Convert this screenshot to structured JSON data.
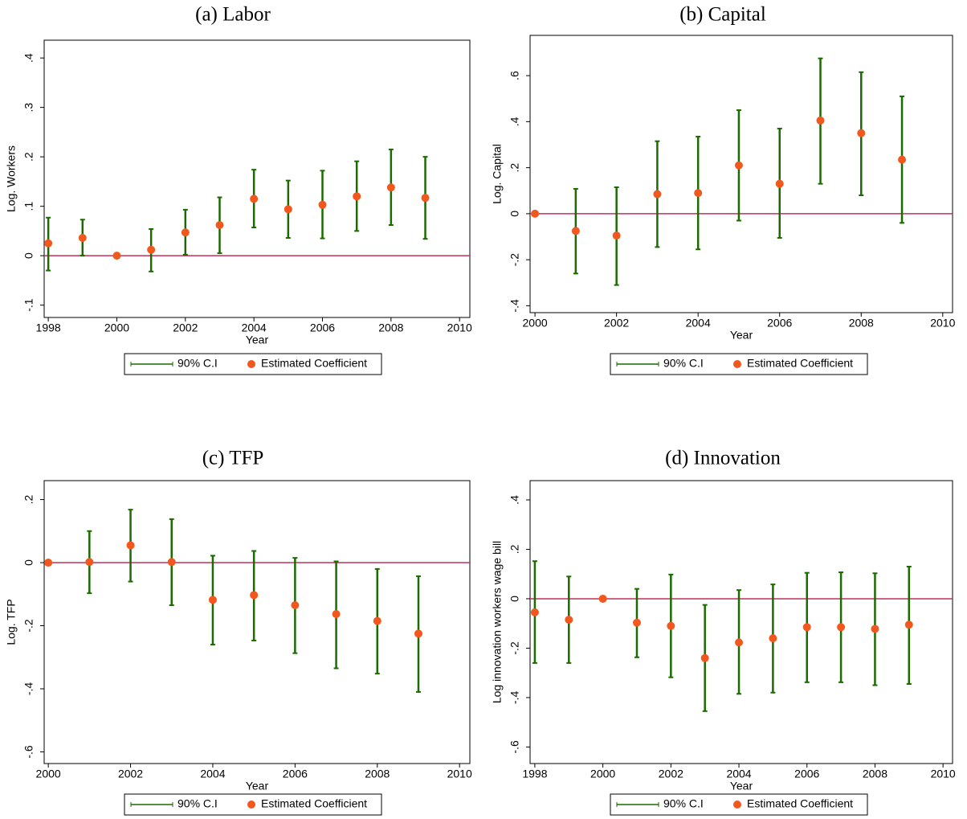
{
  "chart_data": [
    {
      "type": "errorbar",
      "title": "(a) Labor",
      "x_label": "Year",
      "y_label": "Log. Workers",
      "x": [
        1998,
        1999,
        2000,
        2001,
        2002,
        2003,
        2004,
        2005,
        2006,
        2007,
        2008,
        2009
      ],
      "series": [
        {
          "name": "90% C.I",
          "color": "#1a6b00",
          "lower": [
            -0.03,
            0,
            null,
            -0.032,
            0.002,
            0.005,
            0.057,
            0.036,
            0.035,
            0.05,
            0.062,
            0.034
          ],
          "upper": [
            0.077,
            0.073,
            null,
            0.054,
            0.093,
            0.118,
            0.174,
            0.152,
            0.172,
            0.191,
            0.215,
            0.2
          ]
        },
        {
          "name": "Estimated Coefficient",
          "color": "#f2581e",
          "values": [
            0.025,
            0.036,
            0,
            0.012,
            0.047,
            0.062,
            0.115,
            0.094,
            0.103,
            0.12,
            0.138,
            0.117
          ]
        }
      ],
      "hline": 0,
      "hline_color": "#c0305a",
      "xlim": [
        1997.88,
        2010.3
      ],
      "xticks": [
        1998,
        2000,
        2002,
        2004,
        2006,
        2008,
        2010
      ],
      "ylim": [
        -0.125,
        0.436
      ],
      "yticks": [
        {
          "value": -0.1,
          "label": "-.1"
        },
        0,
        {
          "value": 0.1,
          "label": ".1"
        },
        {
          "value": 0.2,
          "label": ".2"
        },
        {
          "value": 0.3,
          "label": ".3"
        },
        {
          "value": 0.4,
          "label": ".4"
        }
      ]
    },
    {
      "type": "errorbar",
      "title": "(b) Capital",
      "x_label": "Year",
      "y_label": "Log. Capital",
      "x": [
        2000,
        2001,
        2002,
        2003,
        2004,
        2005,
        2006,
        2007,
        2008,
        2009
      ],
      "series": [
        {
          "name": "90% C.I",
          "color": "#1a6b00",
          "lower": [
            null,
            -0.26,
            -0.31,
            -0.145,
            -0.155,
            -0.03,
            -0.105,
            0.13,
            0.08,
            -0.04
          ],
          "upper": [
            null,
            0.108,
            0.115,
            0.315,
            0.335,
            0.45,
            0.37,
            0.675,
            0.615,
            0.51
          ]
        },
        {
          "name": "Estimated Coefficient",
          "color": "#f2581e",
          "values": [
            0,
            -0.075,
            -0.095,
            0.085,
            0.09,
            0.21,
            0.13,
            0.405,
            0.35,
            0.235
          ]
        }
      ],
      "hline": 0,
      "hline_color": "#c0305a",
      "xlim": [
        1999.88,
        2010.24
      ],
      "xticks": [
        2000,
        2002,
        2004,
        2006,
        2008,
        2010
      ],
      "ylim": [
        -0.43,
        0.775
      ],
      "yticks": [
        {
          "value": -0.4,
          "label": "-.4"
        },
        {
          "value": -0.2,
          "label": "-.2"
        },
        0,
        {
          "value": 0.2,
          "label": ".2"
        },
        {
          "value": 0.4,
          "label": ".4"
        },
        {
          "value": 0.6,
          "label": ".6"
        }
      ]
    },
    {
      "type": "errorbar",
      "title": "(c) TFP",
      "x_label": "Year",
      "y_label": "Log. TFP",
      "x": [
        2000,
        2001,
        2002,
        2003,
        2004,
        2005,
        2006,
        2007,
        2008,
        2009
      ],
      "series": [
        {
          "name": "90% C.I",
          "color": "#1a6b00",
          "lower": [
            null,
            -0.097,
            -0.06,
            -0.135,
            -0.26,
            -0.247,
            -0.287,
            -0.335,
            -0.352,
            -0.41
          ],
          "upper": [
            null,
            0.1,
            0.168,
            0.138,
            0.022,
            0.037,
            0.015,
            0.004,
            -0.02,
            -0.043
          ]
        },
        {
          "name": "Estimated Coefficient",
          "color": "#f2581e",
          "values": [
            0,
            0.002,
            0.055,
            0.002,
            -0.118,
            -0.103,
            -0.135,
            -0.163,
            -0.185,
            -0.225
          ]
        }
      ],
      "hline": 0,
      "hline_color": "#c0305a",
      "xlim": [
        1999.9,
        2010.25
      ],
      "xticks": [
        2000,
        2002,
        2004,
        2006,
        2008,
        2010
      ],
      "ylim": [
        -0.637,
        0.26
      ],
      "yticks": [
        {
          "value": -0.6,
          "label": "-.6"
        },
        {
          "value": -0.4,
          "label": "-.4"
        },
        {
          "value": -0.2,
          "label": "-.2"
        },
        0,
        {
          "value": 0.2,
          "label": ".2"
        }
      ]
    },
    {
      "type": "errorbar",
      "title": "(d) Innovation",
      "x_label": "Year",
      "y_label": "Log innovation workers wage bill",
      "x": [
        1998,
        1999,
        2000,
        2001,
        2002,
        2003,
        2004,
        2005,
        2006,
        2007,
        2008,
        2009
      ],
      "series": [
        {
          "name": "90% C.I",
          "color": "#1a6b00",
          "lower": [
            -0.26,
            -0.26,
            null,
            -0.237,
            -0.318,
            -0.455,
            -0.385,
            -0.38,
            -0.338,
            -0.338,
            -0.35,
            -0.345
          ],
          "upper": [
            0.152,
            0.09,
            null,
            0.04,
            0.098,
            -0.025,
            0.035,
            0.058,
            0.105,
            0.107,
            0.103,
            0.13
          ]
        },
        {
          "name": "Estimated Coefficient",
          "color": "#f2581e",
          "values": [
            -0.055,
            -0.085,
            0,
            -0.097,
            -0.11,
            -0.24,
            -0.177,
            -0.16,
            -0.115,
            -0.115,
            -0.122,
            -0.105
          ]
        }
      ],
      "hline": 0,
      "hline_color": "#c0305a",
      "xlim": [
        1997.86,
        2010.28
      ],
      "xticks": [
        1998,
        2000,
        2002,
        2004,
        2006,
        2008,
        2010
      ],
      "ylim": [
        -0.667,
        0.478
      ],
      "yticks": [
        {
          "value": -0.6,
          "label": "-.6"
        },
        {
          "value": -0.4,
          "label": "-.4"
        },
        {
          "value": -0.2,
          "label": "-.2"
        },
        0,
        {
          "value": 0.2,
          "label": ".2"
        },
        {
          "value": 0.4,
          "label": ".4"
        }
      ]
    }
  ]
}
